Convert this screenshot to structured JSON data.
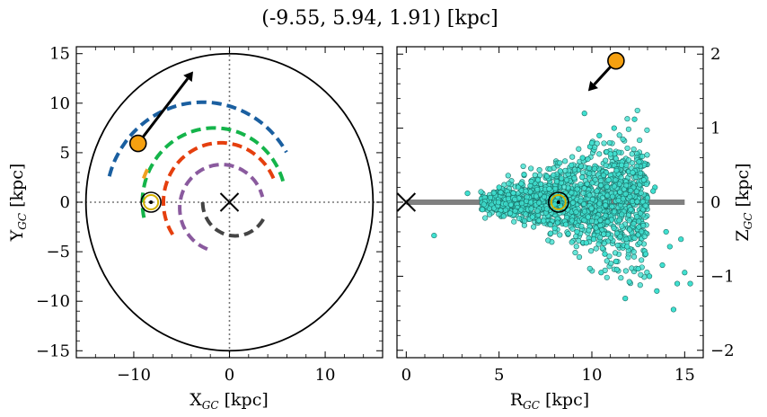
{
  "figure_title": "(-9.55, 5.94, 1.91) [kpc]",
  "chart_data": [
    {
      "type": "scatter",
      "panel": "left",
      "title": "",
      "xlabel_main": "X",
      "xlabel_sub": "GC",
      "xlabel_unit": " [kpc]",
      "ylabel_main": "Y",
      "ylabel_sub": "GC",
      "ylabel_unit": " [kpc]",
      "xlim": [
        -16,
        16
      ],
      "ylim": [
        -15.7,
        15.7
      ],
      "xticks": [
        -10,
        0,
        10
      ],
      "xtick_labels": [
        "−10",
        "0",
        "10"
      ],
      "yticks": [
        -15,
        -10,
        -5,
        0,
        5,
        10,
        15
      ],
      "ytick_labels": [
        "−15",
        "−10",
        "−5",
        "0",
        "5",
        "10",
        "15"
      ],
      "grid": false,
      "boundary_circle_radius": 15,
      "galactic_center": [
        0,
        0
      ],
      "sun_position": [
        -8.2,
        0
      ],
      "object_position": [
        -9.55,
        5.94
      ],
      "velocity_arrow_end": [
        -3.8,
        13.2
      ],
      "spiral_arms": [
        {
          "color": "#1a5fa0",
          "theta_start": 165,
          "theta_end": 30,
          "r": 10.1,
          "cx": -2.8,
          "cy": 0
        },
        {
          "color": "#14b44a",
          "theta_start": 192,
          "theta_end": 15,
          "r": 7.5,
          "cx": -1.6,
          "cy": 0
        },
        {
          "color": "#f0a020",
          "theta_start": 160,
          "theta_end": 148,
          "r": 7.0,
          "cx": -2.4,
          "cy": 0
        },
        {
          "color": "#e53f0e",
          "theta_start": 213,
          "theta_end": 20,
          "r": 6.0,
          "cx": -0.9,
          "cy": 0
        },
        {
          "color": "#8a5a9e",
          "theta_start": 250,
          "theta_end": 15,
          "r": 4.4,
          "cx": -0.8,
          "cy": -0.6
        },
        {
          "color": "#444444",
          "theta_start": 180,
          "theta_end": 330,
          "r": 3.4,
          "cx": 0.6,
          "cy": 0
        }
      ]
    },
    {
      "type": "scatter",
      "panel": "right",
      "title": "",
      "xlabel_main": "R",
      "xlabel_sub": "GC",
      "xlabel_unit": " [kpc]",
      "ylabel_main": "Z",
      "ylabel_sub": "GC",
      "ylabel_unit": " [kpc]",
      "xlim": [
        -0.5,
        16
      ],
      "ylim": [
        -2.1,
        2.1
      ],
      "xticks": [
        0,
        5,
        10,
        15
      ],
      "xtick_labels": [
        "0",
        "5",
        "10",
        "15"
      ],
      "yticks": [
        -2,
        -1,
        0,
        1,
        2
      ],
      "ytick_labels": [
        "−2",
        "−1",
        "0",
        "1",
        "2"
      ],
      "grid": false,
      "disk_line": {
        "x": [
          0,
          15
        ],
        "y": 0,
        "color": "#808080"
      },
      "galactic_center": [
        0,
        0
      ],
      "sun_position": [
        8.2,
        0
      ],
      "object_position": [
        11.3,
        1.91
      ],
      "velocity_arrow_end": [
        9.8,
        1.5
      ],
      "point_color": "#40e0d0",
      "sample_points": {
        "x": [
          1.5,
          3.3,
          4.1,
          5.0,
          5.6,
          6.2,
          6.8,
          7.1,
          7.4,
          7.7,
          8.0,
          8.3,
          8.6,
          8.9,
          9.2,
          9.5,
          9.7,
          9.9,
          10.1,
          10.4,
          10.7,
          11.0,
          11.3,
          11.6,
          11.9,
          12.2,
          12.5,
          12.8,
          13.1,
          13.4,
          13.8,
          14.2,
          14.6,
          15.0,
          15.3,
          9.6,
          10.0,
          10.5,
          11.2,
          11.8,
          12.3,
          12.9,
          13.5,
          14.0,
          14.4,
          9.8,
          10.9,
          12.1,
          13.3,
          14.8
        ],
        "y": [
          -0.45,
          0.12,
          -0.1,
          0.2,
          -0.15,
          0.25,
          -0.2,
          0.3,
          -0.25,
          0.18,
          -0.35,
          0.42,
          -0.3,
          0.5,
          -0.4,
          0.6,
          -0.55,
          0.75,
          -0.5,
          0.9,
          -0.7,
          0.65,
          -0.8,
          0.5,
          -0.6,
          0.4,
          -0.9,
          0.3,
          -1.0,
          0.2,
          -0.85,
          -0.6,
          -1.1,
          -0.95,
          -1.1,
          1.2,
          0.8,
          -0.95,
          1.0,
          -1.3,
          1.12,
          -0.7,
          -1.2,
          -0.4,
          -1.45,
          -0.2,
          0.3,
          -0.1,
          0.15,
          -0.5
        ]
      }
    }
  ]
}
